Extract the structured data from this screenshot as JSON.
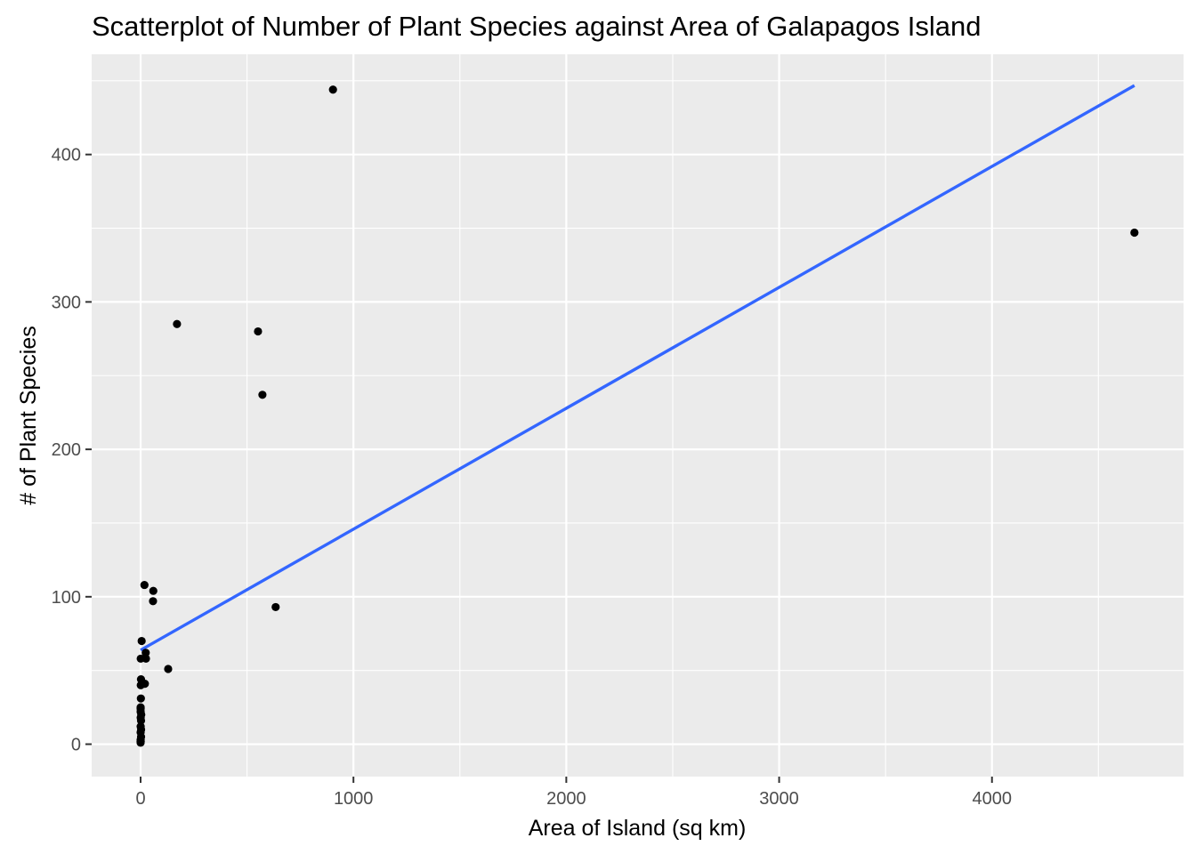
{
  "chart_data": {
    "type": "scatter",
    "title": "Scatterplot of Number of Plant Species against Area of Galapagos Island",
    "xlabel": "Area of Island (sq km)",
    "ylabel": "# of Plant Species",
    "xlim": [
      -230,
      4900
    ],
    "ylim": [
      -22,
      468
    ],
    "x_ticks": [
      0,
      1000,
      2000,
      3000,
      4000
    ],
    "y_ticks": [
      0,
      100,
      200,
      300,
      400
    ],
    "x_tick_labels": [
      "0",
      "1000",
      "2000",
      "3000",
      "4000"
    ],
    "y_tick_labels": [
      "0",
      "100",
      "200",
      "300",
      "400"
    ],
    "grid": true,
    "legend": "none",
    "colors": {
      "panel": "#ebebeb",
      "grid": "#ffffff",
      "point": "#000000",
      "trend": "#3366ff"
    },
    "points": [
      {
        "x": 25.1,
        "y": 58
      },
      {
        "x": 1.24,
        "y": 31
      },
      {
        "x": 0.21,
        "y": 3
      },
      {
        "x": 0.1,
        "y": 25
      },
      {
        "x": 0.05,
        "y": 2
      },
      {
        "x": 0.34,
        "y": 18
      },
      {
        "x": 0.08,
        "y": 24
      },
      {
        "x": 2.33,
        "y": 10
      },
      {
        "x": 0.03,
        "y": 8
      },
      {
        "x": 0.18,
        "y": 2
      },
      {
        "x": 58.27,
        "y": 97
      },
      {
        "x": 634.49,
        "y": 93
      },
      {
        "x": 0.57,
        "y": 58
      },
      {
        "x": 2.07,
        "y": 5
      },
      {
        "x": 0.78,
        "y": 40
      },
      {
        "x": 0.01,
        "y": 1
      },
      {
        "x": 0.18,
        "y": 22
      },
      {
        "x": 4669.32,
        "y": 347
      },
      {
        "x": 129.49,
        "y": 51
      },
      {
        "x": 0.01,
        "y": 2
      },
      {
        "x": 59.56,
        "y": 104
      },
      {
        "x": 17.95,
        "y": 108
      },
      {
        "x": 0.23,
        "y": 12
      },
      {
        "x": 4.89,
        "y": 70
      },
      {
        "x": 551.62,
        "y": 280
      },
      {
        "x": 572.33,
        "y": 237
      },
      {
        "x": 903.82,
        "y": 444
      },
      {
        "x": 24.08,
        "y": 62
      },
      {
        "x": 170.92,
        "y": 285
      },
      {
        "x": 1.84,
        "y": 44
      },
      {
        "x": 20.0,
        "y": 41
      },
      {
        "x": 2.0,
        "y": 16
      },
      {
        "x": 3.0,
        "y": 20
      }
    ],
    "trend_line": {
      "method": "lm",
      "x": [
        0.01,
        4669.32
      ],
      "y": [
        63.8,
        446.8
      ]
    }
  }
}
